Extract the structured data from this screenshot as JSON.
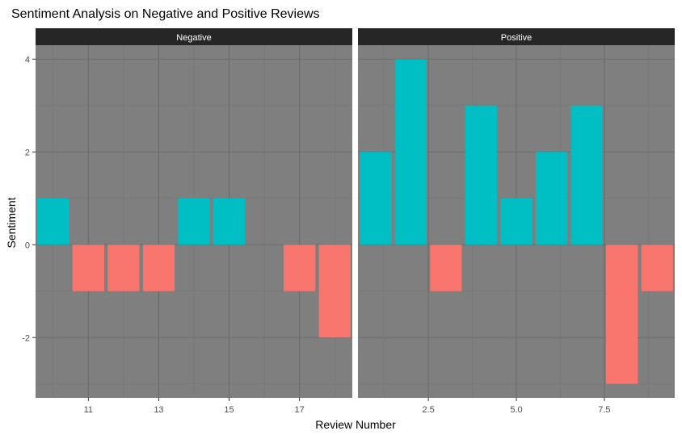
{
  "chart_data": {
    "type": "bar",
    "title": "Sentiment Analysis on Negative and Positive Reviews",
    "xlabel": "Review Number",
    "ylabel": "Sentiment",
    "ylim": [
      -3.3,
      4.3
    ],
    "y_ticks": [
      -2,
      0,
      2,
      4
    ],
    "y_tick_labels": [
      "-2",
      "0",
      "2",
      "4"
    ],
    "grid": true,
    "legend": "none",
    "colors": {
      "positive": "#00BFC4",
      "negative": "#F8766D",
      "panel": "#7f7f7f",
      "strip": "#262626",
      "grid_major": "#6b6b6b",
      "grid_minor": "#757575"
    },
    "panels": [
      {
        "label": "Negative",
        "xlim": [
          9.5,
          18.5
        ],
        "x_ticks": [
          11,
          13,
          15,
          17
        ],
        "x_tick_labels": [
          "11",
          "13",
          "15",
          "17"
        ],
        "x": [
          10,
          11,
          12,
          13,
          14,
          15,
          16,
          17,
          18
        ],
        "values": [
          1,
          -1,
          -1,
          -1,
          1,
          1,
          0,
          -1,
          -2
        ]
      },
      {
        "label": "Positive",
        "xlim": [
          0.5,
          9.5
        ],
        "x_ticks": [
          2.5,
          5.0,
          7.5
        ],
        "x_tick_labels": [
          "2.5",
          "5.0",
          "7.5"
        ],
        "x": [
          1,
          2,
          3,
          4,
          5,
          6,
          7,
          8,
          9
        ],
        "values": [
          2,
          4,
          -1,
          3,
          1,
          2,
          3,
          -3,
          -1
        ]
      }
    ]
  }
}
